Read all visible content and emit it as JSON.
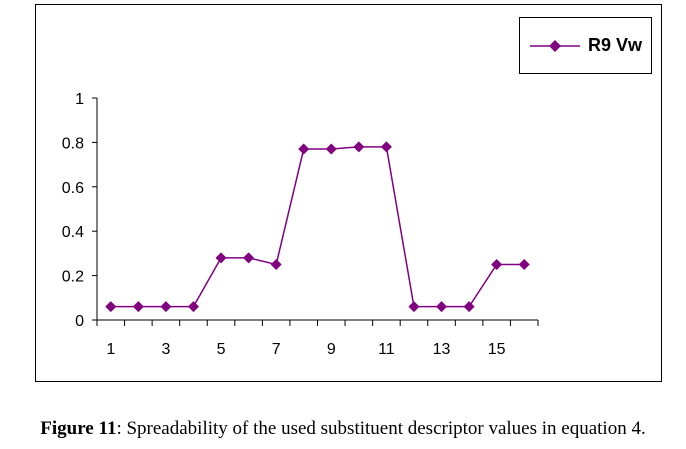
{
  "chart_data": {
    "type": "line",
    "x": [
      1,
      2,
      3,
      4,
      5,
      6,
      7,
      8,
      9,
      10,
      11,
      12,
      13,
      14,
      15,
      16
    ],
    "x_tick_labels": [
      "1",
      "3",
      "5",
      "7",
      "9",
      "11",
      "13",
      "15"
    ],
    "series": [
      {
        "name": "R9 Vw",
        "color": "#800080",
        "marker": "diamond",
        "values": [
          0.06,
          0.06,
          0.06,
          0.06,
          0.28,
          0.28,
          0.25,
          0.77,
          0.77,
          0.78,
          0.78,
          0.06,
          0.06,
          0.06,
          0.25,
          0.25
        ]
      }
    ],
    "ylim": [
      0,
      1
    ],
    "y_ticks": [
      0,
      0.2,
      0.4,
      0.6,
      0.8,
      1
    ],
    "y_tick_labels": [
      "0",
      "0.2",
      "0.4",
      "0.6",
      "0.8",
      "1"
    ],
    "grid": false,
    "legend_position": "top-right"
  },
  "caption": {
    "label": "Figure 11",
    "text": ": Spreadability of the used substituent descriptor values in equation 4."
  }
}
